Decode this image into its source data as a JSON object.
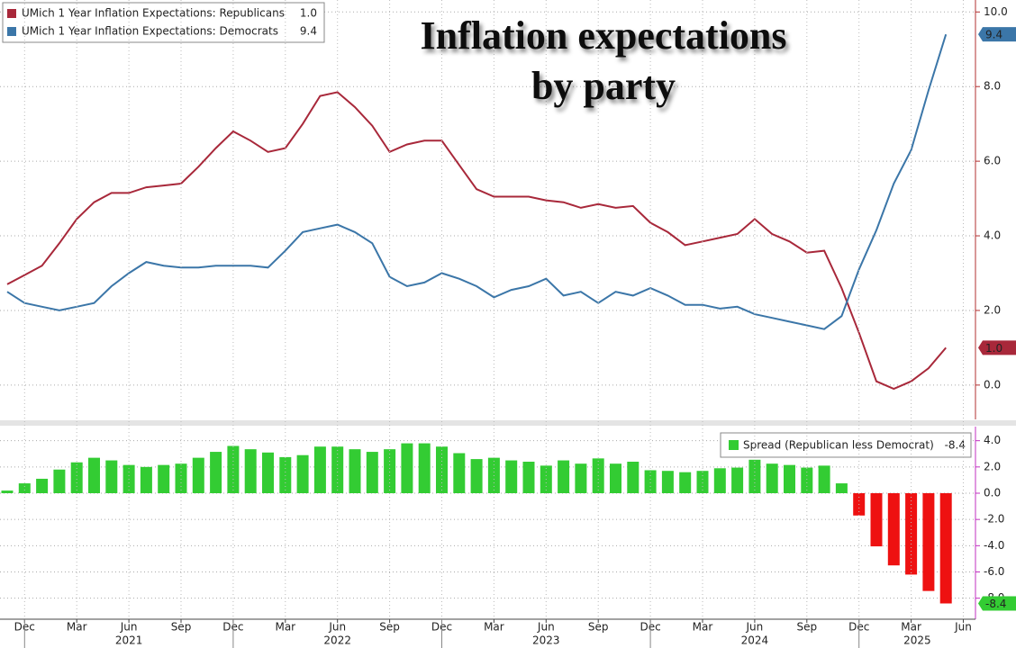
{
  "chart_data": [
    {
      "type": "line",
      "title": [
        "Inflation expectations",
        "by party"
      ],
      "x": [
        "2020-11",
        "2020-12",
        "2021-01",
        "2021-02",
        "2021-03",
        "2021-04",
        "2021-05",
        "2021-06",
        "2021-07",
        "2021-08",
        "2021-09",
        "2021-10",
        "2021-11",
        "2021-12",
        "2022-01",
        "2022-02",
        "2022-03",
        "2022-04",
        "2022-05",
        "2022-06",
        "2022-07",
        "2022-08",
        "2022-09",
        "2022-10",
        "2022-11",
        "2022-12",
        "2023-01",
        "2023-02",
        "2023-03",
        "2023-04",
        "2023-05",
        "2023-06",
        "2023-07",
        "2023-08",
        "2023-09",
        "2023-10",
        "2023-11",
        "2023-12",
        "2024-01",
        "2024-02",
        "2024-03",
        "2024-04",
        "2024-05",
        "2024-06",
        "2024-07",
        "2024-08",
        "2024-09",
        "2024-10",
        "2024-11",
        "2024-12",
        "2025-01",
        "2025-02",
        "2025-03",
        "2025-04",
        "2025-05"
      ],
      "series": [
        {
          "name": "UMich 1 Year Inflation Expectations: Republicans",
          "color": "#a8283a",
          "last_label": "1.0",
          "values": [
            2.7,
            2.95,
            3.2,
            3.8,
            4.45,
            4.9,
            5.15,
            5.15,
            5.3,
            5.35,
            5.4,
            5.85,
            6.35,
            6.8,
            6.55,
            6.25,
            6.35,
            7.0,
            7.75,
            7.85,
            7.45,
            6.95,
            6.25,
            6.45,
            6.55,
            6.55,
            5.9,
            5.25,
            5.05,
            5.05,
            5.05,
            4.95,
            4.9,
            4.75,
            4.85,
            4.75,
            4.8,
            4.35,
            4.1,
            3.75,
            3.85,
            3.95,
            4.05,
            4.45,
            4.05,
            3.85,
            3.55,
            3.6,
            2.6,
            1.4,
            0.1,
            -0.1,
            0.1,
            0.45,
            1.0
          ]
        },
        {
          "name": "UMich 1 Year Inflation Expectations: Democrats",
          "color": "#3b76a8",
          "values": [
            2.5,
            2.2,
            2.1,
            2.0,
            2.1,
            2.2,
            2.65,
            3.0,
            3.3,
            3.2,
            3.15,
            3.15,
            3.2,
            3.2,
            3.2,
            3.15,
            3.6,
            4.1,
            4.2,
            4.3,
            4.1,
            3.8,
            2.9,
            2.65,
            2.75,
            3.0,
            2.85,
            2.65,
            2.35,
            2.55,
            2.65,
            2.85,
            2.4,
            2.5,
            2.2,
            2.5,
            2.4,
            2.6,
            2.4,
            2.15,
            2.15,
            2.05,
            2.1,
            1.9,
            1.8,
            1.7,
            1.6,
            1.5,
            1.85,
            3.1,
            4.15,
            5.4,
            6.3,
            7.9,
            9.4
          ]
        }
      ],
      "ylim": [
        -0.92,
        10.2
      ],
      "yticks": [
        {
          "value": 0,
          "label": "0.0"
        },
        {
          "value": 2,
          "label": "2.0"
        },
        {
          "value": 4,
          "label": "4.0"
        },
        {
          "value": 6,
          "label": "6.0"
        },
        {
          "value": 8,
          "label": "8.0"
        },
        {
          "value": 10,
          "label": "10.0"
        }
      ],
      "grid": true,
      "legend": "upper left"
    },
    {
      "type": "bar",
      "x": [
        "2020-11",
        "2020-12",
        "2021-01",
        "2021-02",
        "2021-03",
        "2021-04",
        "2021-05",
        "2021-06",
        "2021-07",
        "2021-08",
        "2021-09",
        "2021-10",
        "2021-11",
        "2021-12",
        "2022-01",
        "2022-02",
        "2022-03",
        "2022-04",
        "2022-05",
        "2022-06",
        "2022-07",
        "2022-08",
        "2022-09",
        "2022-10",
        "2022-11",
        "2022-12",
        "2023-01",
        "2023-02",
        "2023-03",
        "2023-04",
        "2023-05",
        "2023-06",
        "2023-07",
        "2023-08",
        "2023-09",
        "2023-10",
        "2023-11",
        "2023-12",
        "2024-01",
        "2024-02",
        "2024-03",
        "2024-04",
        "2024-05",
        "2024-06",
        "2024-07",
        "2024-08",
        "2024-09",
        "2024-10",
        "2024-11",
        "2024-12",
        "2025-01",
        "2025-02",
        "2025-03",
        "2025-04",
        "2025-05"
      ],
      "series": [
        {
          "name": "Spread (Republican less Democrat)",
          "color": "#33cc33",
          "negative_color": "#ee1111",
          "values": [
            0.2,
            0.75,
            1.1,
            1.8,
            2.35,
            2.7,
            2.5,
            2.15,
            2.0,
            2.15,
            2.25,
            2.7,
            3.15,
            3.6,
            3.35,
            3.1,
            2.75,
            2.9,
            3.55,
            3.55,
            3.35,
            3.15,
            3.35,
            3.8,
            3.8,
            3.55,
            3.05,
            2.6,
            2.7,
            2.5,
            2.4,
            2.1,
            2.5,
            2.25,
            2.65,
            2.25,
            2.4,
            1.75,
            1.7,
            1.6,
            1.7,
            1.9,
            1.95,
            2.55,
            2.25,
            2.15,
            1.95,
            2.1,
            0.75,
            -1.7,
            -4.05,
            -5.5,
            -6.2,
            -7.45,
            -8.4
          ]
        }
      ],
      "ylim": [
        -9.6,
        4.8
      ],
      "yticks": [
        {
          "value": -8,
          "label": "-8.0"
        },
        {
          "value": -6,
          "label": "-6.0"
        },
        {
          "value": -4,
          "label": "-4.0"
        },
        {
          "value": -2,
          "label": "-2.0"
        },
        {
          "value": 0,
          "label": "0.0"
        },
        {
          "value": 2,
          "label": "2.0"
        },
        {
          "value": 4,
          "label": "4.0"
        }
      ],
      "xticks": [
        {
          "value": "2020-12",
          "label": "Dec"
        },
        {
          "value": "2021-03",
          "label": "Mar"
        },
        {
          "value": "2021-06",
          "label": "Jun"
        },
        {
          "value": "2021-09",
          "label": "Sep"
        },
        {
          "value": "2021-12",
          "label": "Dec"
        },
        {
          "value": "2022-03",
          "label": "Mar"
        },
        {
          "value": "2022-06",
          "label": "Jun"
        },
        {
          "value": "2022-09",
          "label": "Sep"
        },
        {
          "value": "2022-12",
          "label": "Dec"
        },
        {
          "value": "2023-03",
          "label": "Mar"
        },
        {
          "value": "2023-06",
          "label": "Jun"
        },
        {
          "value": "2023-09",
          "label": "Sep"
        },
        {
          "value": "2023-12",
          "label": "Dec"
        },
        {
          "value": "2024-03",
          "label": "Mar"
        },
        {
          "value": "2024-06",
          "label": "Jun"
        },
        {
          "value": "2024-09",
          "label": "Sep"
        },
        {
          "value": "2024-12",
          "label": "Dec"
        },
        {
          "value": "2025-03",
          "label": "Mar"
        },
        {
          "value": "2025-06",
          "label": "Jun"
        }
      ],
      "year_labels": [
        2021,
        2022,
        2023,
        2024,
        2025
      ],
      "grid": true,
      "legend": "upper right"
    }
  ]
}
